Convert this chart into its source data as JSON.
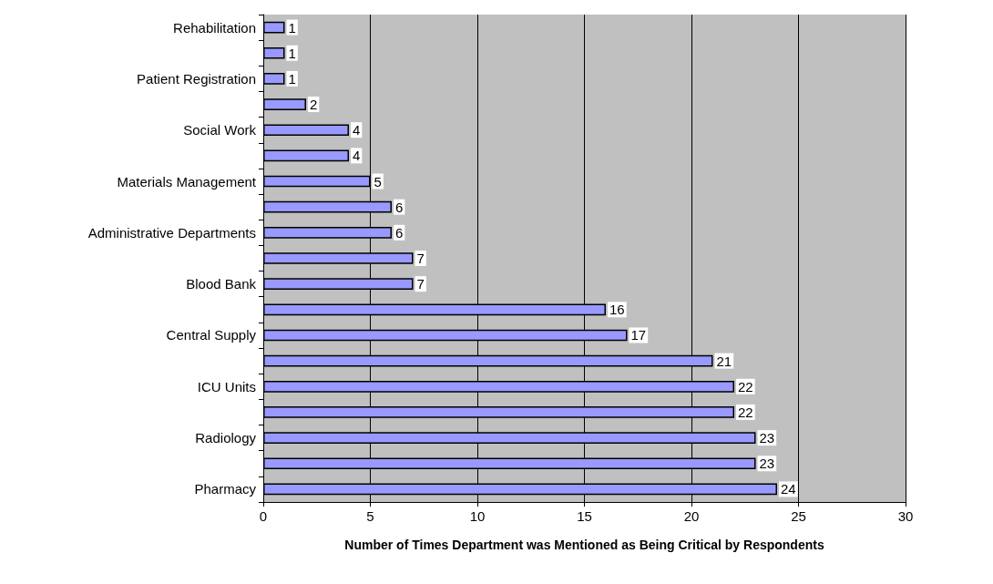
{
  "chart_data": {
    "type": "bar",
    "orientation": "horizontal",
    "xlabel": "Number of Times Department was Mentioned as Being Critical by Respondents",
    "categories": [
      "Rehabilitation",
      null,
      "Patient Registration",
      null,
      "Social Work",
      null,
      "Materials Management",
      null,
      "Administrative Departments",
      null,
      "Blood Bank",
      null,
      "Central Supply",
      null,
      "ICU Units",
      null,
      "Radiology",
      null,
      "Pharmacy"
    ],
    "values": [
      1,
      1,
      1,
      2,
      4,
      4,
      5,
      6,
      6,
      7,
      7,
      16,
      17,
      21,
      22,
      22,
      23,
      23,
      24
    ],
    "color": "#9999ff",
    "xlim": [
      0,
      30
    ],
    "xticks": [
      0,
      5,
      10,
      15,
      20,
      25,
      30
    ],
    "grid": "x",
    "data_labels": true
  }
}
